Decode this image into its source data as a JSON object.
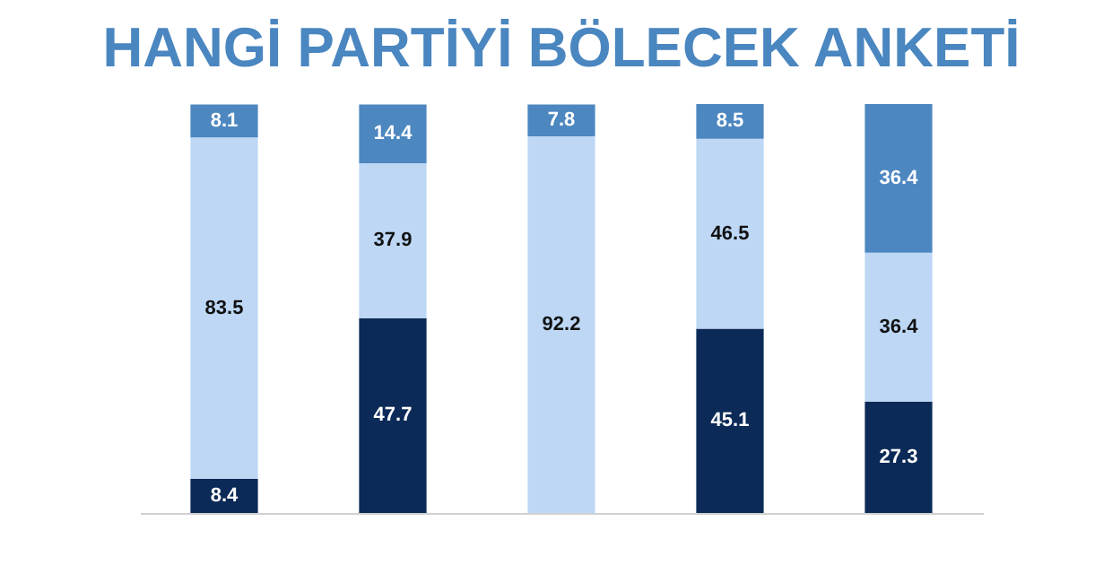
{
  "chart_data": {
    "type": "bar",
    "title": "HANGİ PARTİYİ BÖLECEK ANKETİ",
    "stacked": true,
    "data_labels": true,
    "categories": [
      null,
      null,
      null,
      null,
      null
    ],
    "series": [
      {
        "color": "#0b2a57",
        "values": [
          8.4,
          47.7,
          null,
          45.1,
          27.3
        ]
      },
      {
        "color": "#bdd7f5",
        "values": [
          83.5,
          37.9,
          92.2,
          46.5,
          36.4
        ]
      },
      {
        "color": "#4d87c0",
        "values": [
          8.1,
          14.4,
          7.8,
          8.5,
          36.4
        ]
      }
    ]
  }
}
